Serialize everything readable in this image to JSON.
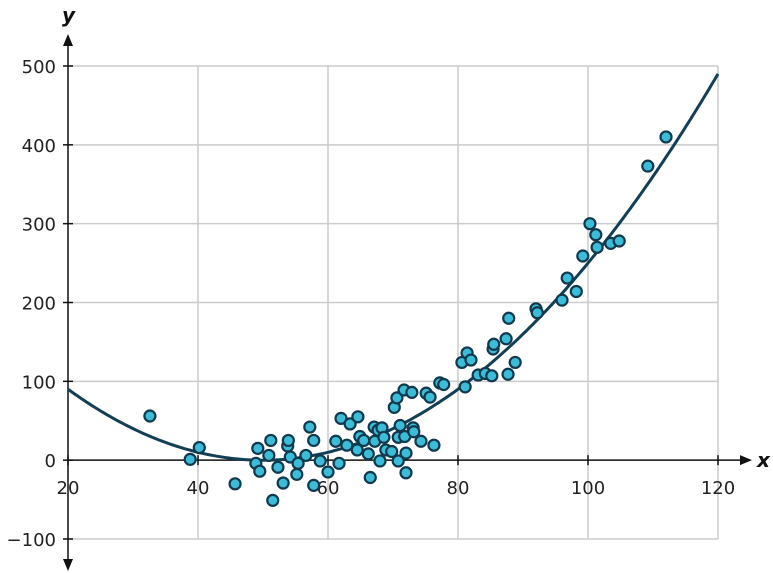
{
  "chart_data": {
    "type": "scatter",
    "title": "",
    "xlabel": "x",
    "ylabel": "y",
    "xlim": [
      20,
      120
    ],
    "ylim": [
      -100,
      500
    ],
    "xticks": [
      20,
      40,
      60,
      80,
      100,
      120
    ],
    "yticks": [
      -100,
      0,
      100,
      200,
      300,
      400,
      500
    ],
    "xtick_labels": [
      "20",
      "40",
      "60",
      "80",
      "100",
      "120"
    ],
    "ytick_labels": [
      "−100",
      "0",
      "100",
      "200",
      "300",
      "400",
      "500"
    ],
    "grid": true,
    "colors": {
      "point_fill": "#3bbcd9",
      "point_stroke": "#10394d",
      "curve": "#123f55",
      "grid": "#cccccc"
    },
    "fit_curve": {
      "type": "quadratic",
      "equation_coefficients": {
        "a": 0.1,
        "b": -10,
        "c": 250
      },
      "x_range": [
        20,
        120
      ]
    },
    "points": [
      [
        32.6,
        56
      ],
      [
        38.8,
        1
      ],
      [
        40.2,
        16
      ],
      [
        45.7,
        -30
      ],
      [
        48.9,
        -4
      ],
      [
        49.2,
        15
      ],
      [
        49.5,
        -14
      ],
      [
        50.9,
        6
      ],
      [
        51.2,
        25
      ],
      [
        51.5,
        -51
      ],
      [
        52.3,
        -9
      ],
      [
        53.1,
        -29
      ],
      [
        53.8,
        18
      ],
      [
        53.9,
        25
      ],
      [
        54.2,
        4
      ],
      [
        55.2,
        -18
      ],
      [
        55.4,
        -4
      ],
      [
        56.6,
        6
      ],
      [
        57.2,
        42
      ],
      [
        57.8,
        25
      ],
      [
        57.8,
        -32
      ],
      [
        58.8,
        -1
      ],
      [
        60,
        -15
      ],
      [
        61.2,
        24
      ],
      [
        61.7,
        -4
      ],
      [
        62,
        53
      ],
      [
        62.9,
        19
      ],
      [
        63.4,
        46
      ],
      [
        64.5,
        13
      ],
      [
        64.6,
        55
      ],
      [
        64.9,
        30
      ],
      [
        65.5,
        25
      ],
      [
        66.2,
        8
      ],
      [
        66.5,
        -22
      ],
      [
        67.1,
        42
      ],
      [
        67.2,
        24
      ],
      [
        67.7,
        38
      ],
      [
        68,
        -1
      ],
      [
        68.3,
        41
      ],
      [
        68.6,
        29
      ],
      [
        68.9,
        13
      ],
      [
        69.8,
        11
      ],
      [
        70.2,
        67
      ],
      [
        70.6,
        79
      ],
      [
        70.8,
        -1
      ],
      [
        70.8,
        29
      ],
      [
        71.1,
        44
      ],
      [
        71.7,
        89
      ],
      [
        71.8,
        30
      ],
      [
        72,
        9
      ],
      [
        72,
        -16
      ],
      [
        72.9,
        86
      ],
      [
        73.1,
        41
      ],
      [
        73.2,
        36
      ],
      [
        74.3,
        24
      ],
      [
        75.1,
        85
      ],
      [
        75.7,
        80
      ],
      [
        76.3,
        19
      ],
      [
        77.2,
        98
      ],
      [
        77.8,
        96
      ],
      [
        80.6,
        124
      ],
      [
        81.1,
        93
      ],
      [
        81.4,
        136
      ],
      [
        82,
        127
      ],
      [
        83.1,
        108
      ],
      [
        84.2,
        110
      ],
      [
        85.2,
        107
      ],
      [
        85.4,
        141
      ],
      [
        85.5,
        147
      ],
      [
        87.4,
        154
      ],
      [
        87.7,
        109
      ],
      [
        87.8,
        180
      ],
      [
        88.8,
        124
      ],
      [
        92,
        192
      ],
      [
        92.2,
        187
      ],
      [
        96,
        203
      ],
      [
        96.8,
        231
      ],
      [
        98.2,
        214
      ],
      [
        99.2,
        259
      ],
      [
        100.3,
        300
      ],
      [
        101.2,
        286
      ],
      [
        101.4,
        270
      ],
      [
        103.5,
        275
      ],
      [
        104.8,
        278
      ],
      [
        109.2,
        373
      ],
      [
        112,
        410
      ]
    ]
  }
}
